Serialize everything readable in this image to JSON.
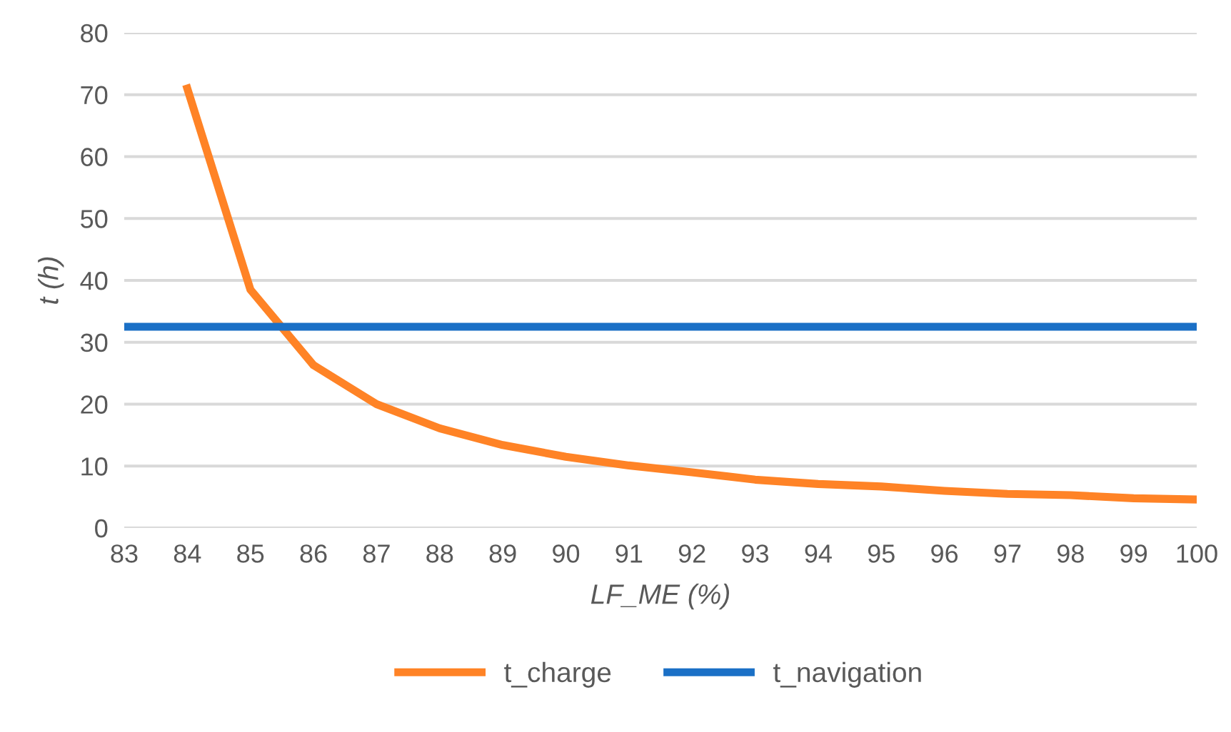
{
  "chart_data": {
    "type": "line",
    "xlabel": "LF_ME (%)",
    "ylabel": "t (h)",
    "xlim": [
      83,
      100
    ],
    "xticks": [
      83,
      84,
      85,
      86,
      87,
      88,
      89,
      90,
      91,
      92,
      93,
      94,
      95,
      96,
      97,
      98,
      99,
      100
    ],
    "ylim": [
      0,
      80
    ],
    "yticks": [
      0,
      10,
      20,
      30,
      40,
      50,
      60,
      70,
      80
    ],
    "grid": "y",
    "legend": "bottom",
    "marker": "none",
    "line_style": "solid",
    "series": [
      {
        "name": "t_charge",
        "color": "#ff8326",
        "x": [
          84,
          85,
          86,
          87,
          88,
          89,
          90,
          91,
          92,
          93,
          94,
          95,
          96,
          97,
          98,
          99,
          100
        ],
        "values": [
          71,
          38.5,
          26.3,
          20,
          16.1,
          13.4,
          11.5,
          10.1,
          9.0,
          7.8,
          7.1,
          6.7,
          6.0,
          5.5,
          5.3,
          4.8,
          4.6
        ]
      },
      {
        "name": "t_navigation",
        "color": "#1b70c6",
        "x": [
          83,
          100
        ],
        "values": [
          32.5,
          32.5
        ]
      }
    ]
  }
}
